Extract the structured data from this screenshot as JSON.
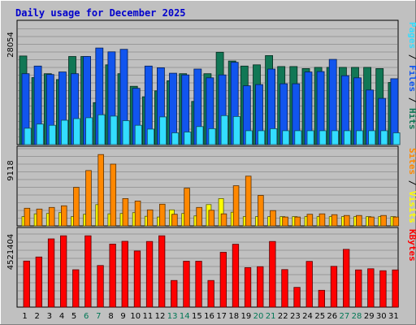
{
  "chart_data": [
    {
      "type": "bar",
      "title": "Daily usage for December 2025",
      "categories": [
        "1",
        "2",
        "3",
        "4",
        "5",
        "6",
        "7",
        "8",
        "9",
        "10",
        "11",
        "12",
        "13",
        "14",
        "15",
        "16",
        "17",
        "18",
        "19",
        "20",
        "21",
        "22",
        "23",
        "24",
        "25",
        "26",
        "27",
        "28",
        "29",
        "30",
        "31"
      ],
      "weekend_days": [
        "6",
        "7",
        "13",
        "14",
        "20",
        "21",
        "27",
        "28"
      ],
      "ylabel_tick": "28054",
      "ylim": [
        0,
        28054
      ],
      "series": [
        {
          "name": "Hits",
          "color": "#117755",
          "values": [
            21100,
            15960,
            16900,
            15500,
            21000,
            21000,
            10000,
            19000,
            16900,
            13900,
            11400,
            12800,
            15200,
            16900,
            10300,
            16900,
            22000,
            19900,
            18700,
            19000,
            21200,
            18600,
            18600,
            18100,
            18400,
            18400,
            18400,
            18400,
            18400,
            18100,
            14800
          ]
        },
        {
          "name": "Files",
          "color": "#1155ee",
          "values": [
            16900,
            18700,
            16700,
            17300,
            16900,
            21000,
            23000,
            22100,
            22700,
            13400,
            18700,
            18300,
            17000,
            16600,
            18000,
            15900,
            16600,
            19600,
            14000,
            14300,
            18000,
            14500,
            14500,
            17300,
            17400,
            20300,
            16400,
            15900,
            13000,
            11000,
            15700
          ]
        },
        {
          "name": "Pages",
          "color": "#33ddff",
          "values": [
            3900,
            4900,
            4600,
            5800,
            6200,
            6400,
            7100,
            6800,
            5700,
            4600,
            3700,
            6600,
            2800,
            3000,
            4300,
            3800,
            6900,
            6700,
            3300,
            3300,
            3800,
            3300,
            3300,
            3300,
            3300,
            3300,
            3300,
            3300,
            3300,
            3300,
            2800
          ]
        }
      ]
    },
    {
      "type": "bar",
      "categories": [
        "1",
        "2",
        "3",
        "4",
        "5",
        "6",
        "7",
        "8",
        "9",
        "10",
        "11",
        "12",
        "13",
        "14",
        "15",
        "16",
        "17",
        "18",
        "19",
        "20",
        "21",
        "22",
        "23",
        "24",
        "25",
        "26",
        "27",
        "28",
        "29",
        "30",
        "31"
      ],
      "ylabel_tick": "9118",
      "ylim": [
        0,
        9118
      ],
      "series": [
        {
          "name": "Visits",
          "color": "#ffff00",
          "values": [
            1150,
            1500,
            1550,
            1650,
            1150,
            1450,
            2650,
            1500,
            1550,
            1650,
            1200,
            1100,
            2000,
            1550,
            1250,
            2650,
            3400,
            1700,
            1150,
            1150,
            1150,
            1150,
            1150,
            1150,
            1150,
            1150,
            1150,
            1150,
            1150,
            1150,
            1150
          ]
        },
        {
          "name": "Sites",
          "color": "#ff8800",
          "values": [
            2200,
            2100,
            2300,
            2500,
            4800,
            6900,
            8900,
            7700,
            3400,
            3100,
            2000,
            2700,
            1450,
            4700,
            2300,
            1950,
            1500,
            5000,
            6200,
            3800,
            1900,
            1100,
            1100,
            1450,
            1500,
            1400,
            1300,
            1300,
            1100,
            1300,
            1100
          ]
        }
      ]
    },
    {
      "type": "bar",
      "categories": [
        "1",
        "2",
        "3",
        "4",
        "5",
        "6",
        "7",
        "8",
        "9",
        "10",
        "11",
        "12",
        "13",
        "14",
        "15",
        "16",
        "17",
        "18",
        "19",
        "20",
        "21",
        "22",
        "23",
        "24",
        "25",
        "26",
        "27",
        "28",
        "29",
        "30",
        "31"
      ],
      "ylabel_tick": "4521404",
      "ylim": [
        0,
        4521404
      ],
      "series": [
        {
          "name": "KBytes",
          "color": "#ff0000",
          "values": [
            2850000,
            3100000,
            4220000,
            4410000,
            2310000,
            4410000,
            2570000,
            3900000,
            4070000,
            3470000,
            4060000,
            4410000,
            1650000,
            2840000,
            2840000,
            1650000,
            3390000,
            3890000,
            2440000,
            2500000,
            4060000,
            2320000,
            1220000,
            2830000,
            1040000,
            2520000,
            3570000,
            2300000,
            2370000,
            2250000,
            2300000
          ]
        }
      ]
    }
  ],
  "side_labels": {
    "top": [
      {
        "text": "Pages",
        "color": "#33ddff"
      },
      {
        "text": " / ",
        "color": "#000000"
      },
      {
        "text": "Files",
        "color": "#1155ee"
      },
      {
        "text": " / ",
        "color": "#000000"
      },
      {
        "text": "Hits",
        "color": "#117755"
      }
    ],
    "middle": [
      {
        "text": "Sites",
        "color": "#ff8800"
      },
      {
        "text": " / ",
        "color": "#000000"
      },
      {
        "text": "Visits",
        "color": "#ffff00"
      }
    ],
    "bottom": [
      {
        "text": "KBytes",
        "color": "#ff0000"
      }
    ]
  },
  "colors": {
    "background": "#c0c0c0",
    "title": "#0000cc",
    "weekend_label": "#007755",
    "weekday_label": "#000000"
  }
}
